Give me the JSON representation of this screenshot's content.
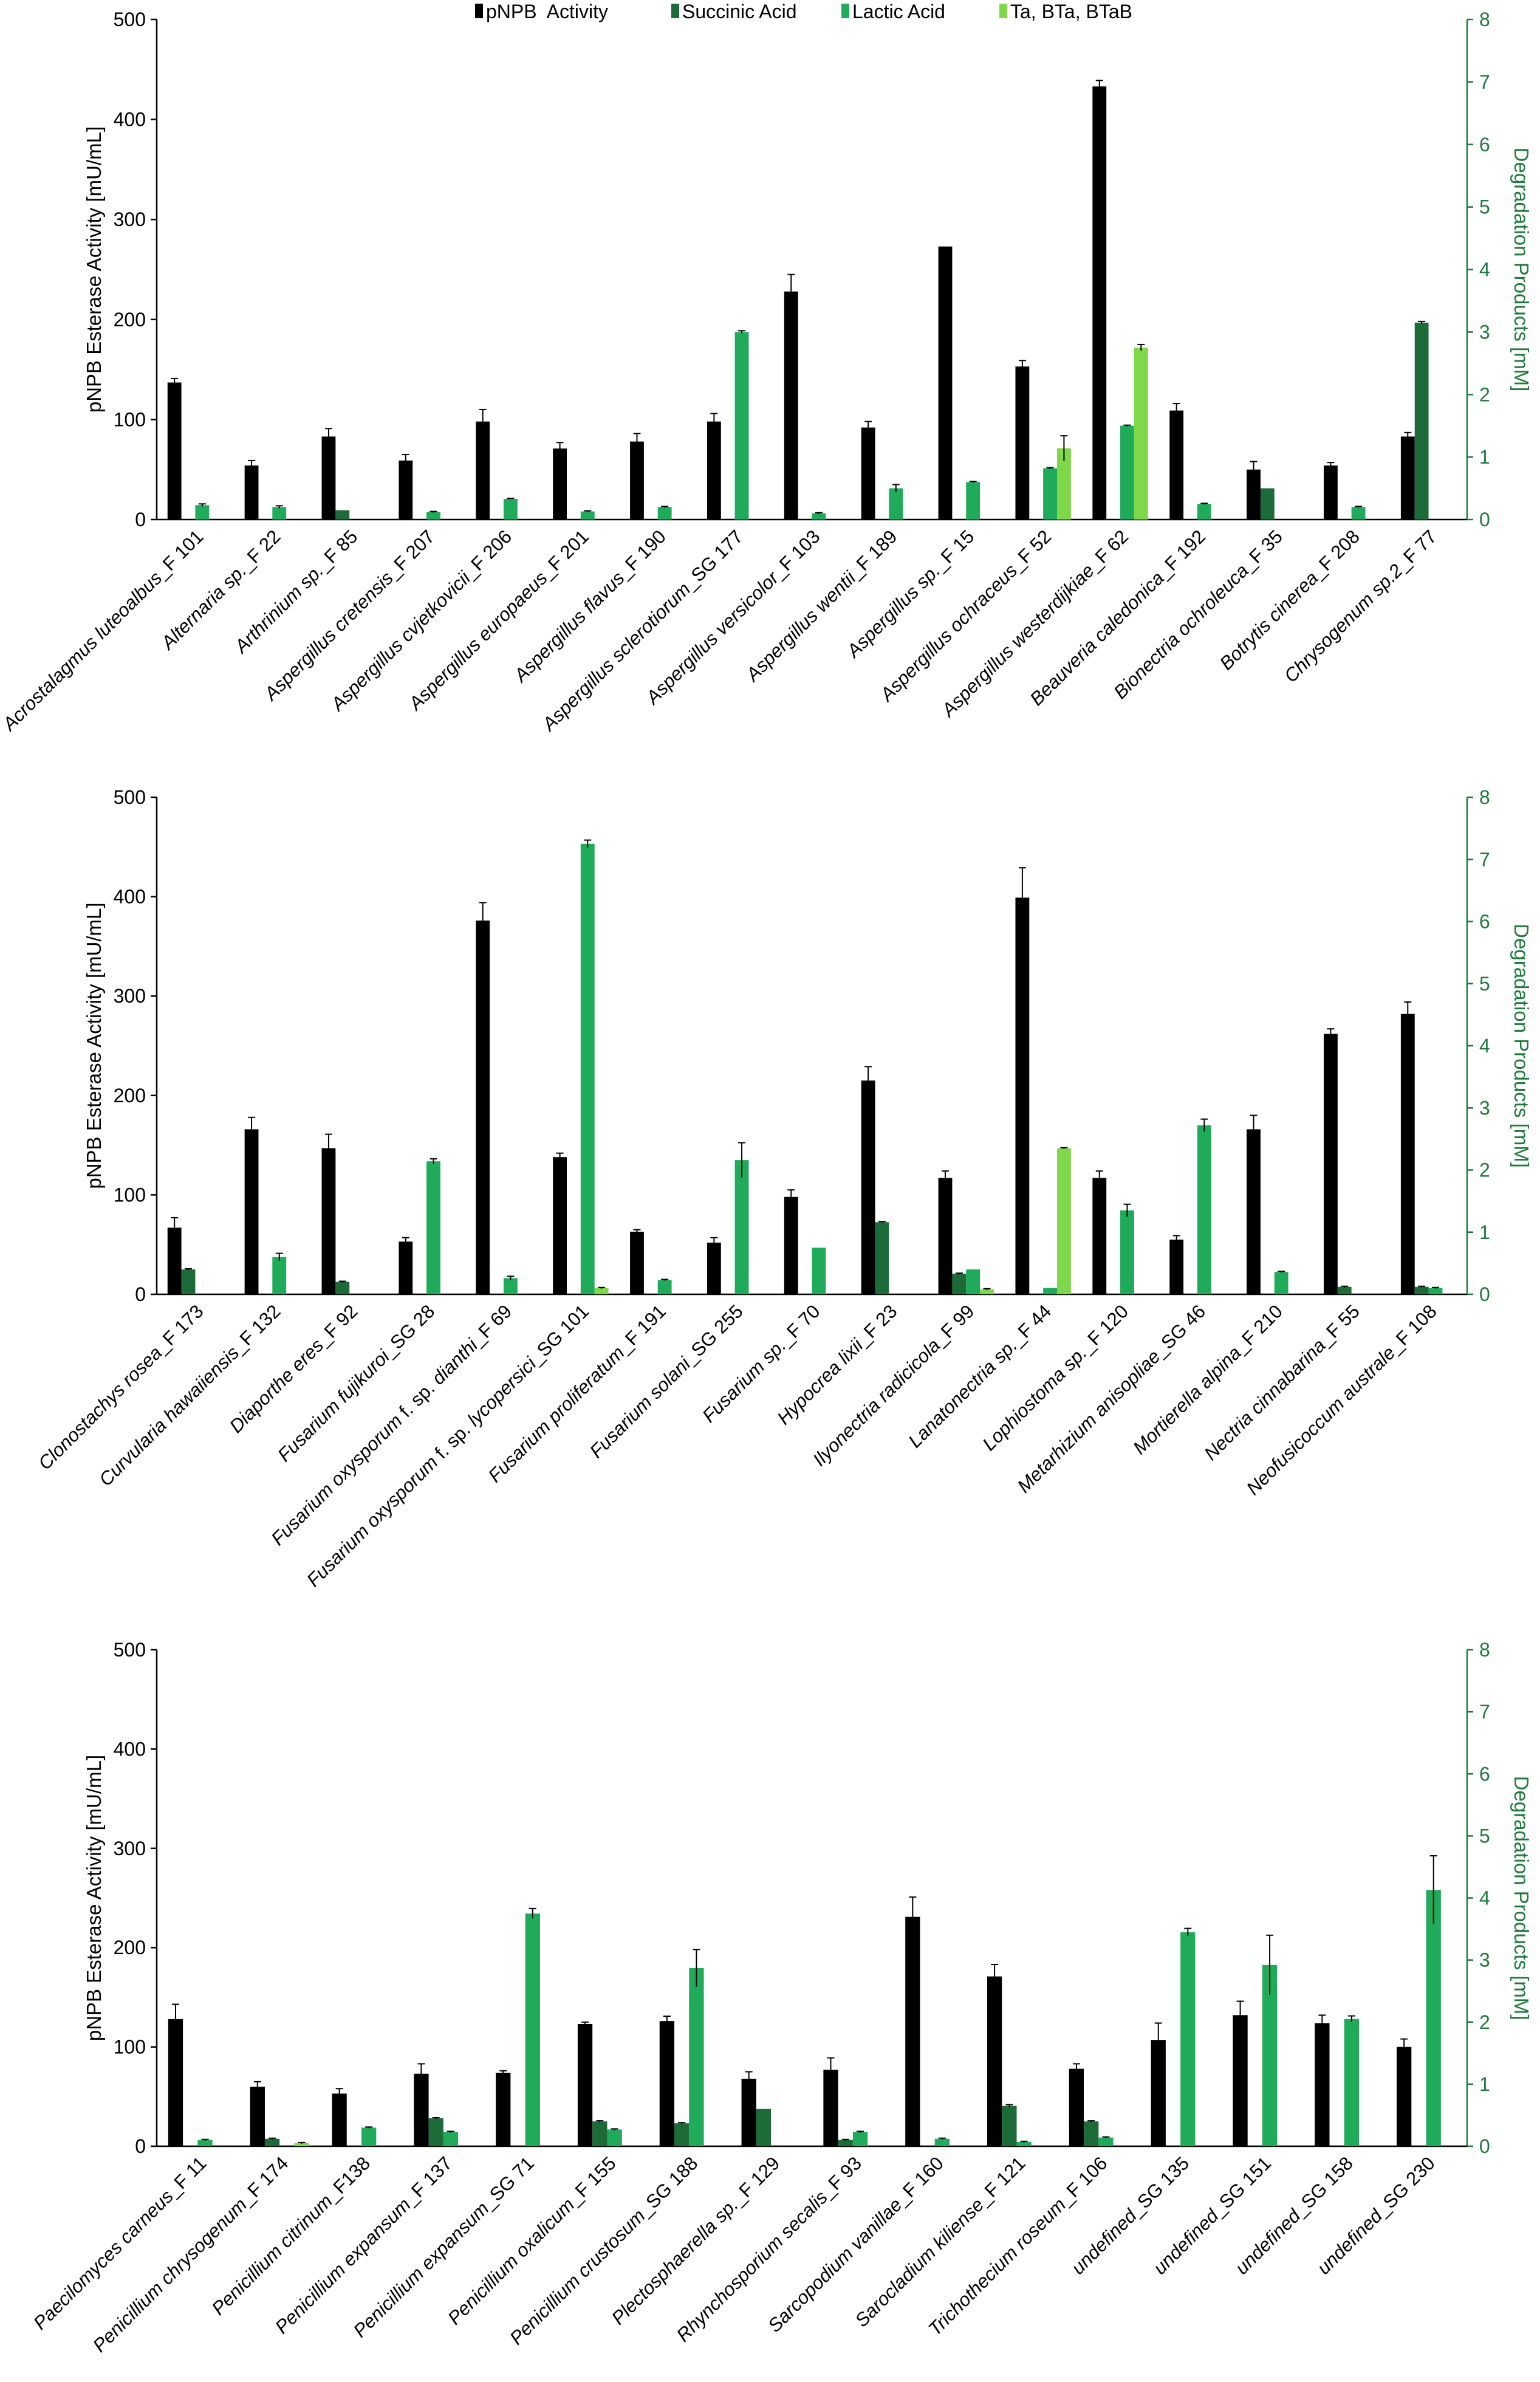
{
  "colors": {
    "pnpb": "#000000",
    "succinic": "#1e6b3a",
    "lactic": "#1fab5a",
    "ta": "#7fd84a",
    "right_axis": "#1e7a3c",
    "left_axis": "#000000"
  },
  "legend": {
    "items": [
      {
        "label": "pNPB  Activity",
        "color_key": "pnpb"
      },
      {
        "label": "Succinic Acid",
        "color_key": "succinic"
      },
      {
        "label": "Lactic Acid",
        "color_key": "lactic"
      },
      {
        "label": "Ta, BTa, BTaB",
        "color_key": "ta"
      }
    ]
  },
  "chart_data": [
    {
      "type": "bar",
      "ylabel": "pNPB Esterase Activity [mU/mL]",
      "y2label": "Degradation Products [mM]",
      "ylim": [
        0,
        500
      ],
      "y2lim": [
        0,
        8
      ],
      "yticks": [
        "0",
        "100",
        "200",
        "300",
        "400",
        "500"
      ],
      "y2ticks": [
        "0",
        "1",
        "2",
        "3",
        "4",
        "5",
        "6",
        "7",
        "8"
      ],
      "categories": [
        {
          "genus": "Acrostalagmus luteoalbus",
          "suffix": "_F 101"
        },
        {
          "genus": "Alternaria sp.",
          "suffix": "_F 22"
        },
        {
          "genus": "Arthrinium sp.",
          "suffix": "_F 85"
        },
        {
          "genus": "Aspergillus cretensis",
          "suffix": "_F 207"
        },
        {
          "genus": "Aspergillus cvjetkovicii",
          "suffix": "_F 206"
        },
        {
          "genus": "Aspergillus europaeus",
          "suffix": "_F 201"
        },
        {
          "genus": "Aspergillus flavus",
          "suffix": "_F 190"
        },
        {
          "genus": "Aspergillus sclerotiorum",
          "suffix": "_SG 177"
        },
        {
          "genus": "Aspergillus versicolor",
          "suffix": "_F 103"
        },
        {
          "genus": "Aspergillus wentii",
          "suffix": "_F 189"
        },
        {
          "genus": "Aspergillus sp.",
          "suffix": "_F 15"
        },
        {
          "genus": "Aspergillus ochraceus",
          "suffix": "_F 52"
        },
        {
          "genus": "Aspergillus westerdijkiae",
          "suffix": "_F 62"
        },
        {
          "genus": "Beauveria caledonica",
          "suffix": "_F 192"
        },
        {
          "genus": "Bionectria ochroleuca",
          "suffix": "_F 35"
        },
        {
          "genus": "Botrytis cinerea",
          "suffix": "_F 208"
        },
        {
          "genus": "Chrysogenum sp.2",
          "suffix": "_F 77"
        }
      ],
      "series": [
        {
          "name": "pNPB  Activity",
          "axis": "left",
          "color_key": "pnpb",
          "values": [
            137,
            54,
            83,
            59,
            98,
            71,
            78,
            98,
            228,
            92,
            273,
            153,
            433,
            109,
            50,
            54,
            83
          ],
          "errors": [
            4,
            5,
            8,
            6,
            12,
            6,
            8,
            8,
            17,
            6,
            0,
            6,
            6,
            7,
            8,
            3,
            4
          ]
        },
        {
          "name": "Succinic Acid",
          "axis": "right",
          "color_key": "succinic",
          "values": [
            0,
            0,
            0.15,
            0,
            0,
            0,
            0,
            0,
            0,
            0,
            0,
            0,
            0,
            0,
            0.5,
            0,
            3.15
          ],
          "errors": [
            0,
            0,
            0,
            0,
            0,
            0,
            0,
            0,
            0,
            0,
            0,
            0,
            0,
            0,
            0,
            0,
            0.02
          ]
        },
        {
          "name": "Lactic Acid",
          "axis": "right",
          "color_key": "lactic",
          "values": [
            0.23,
            0.2,
            0,
            0.12,
            0.33,
            0.13,
            0.2,
            3.0,
            0.1,
            0.5,
            0.6,
            0.82,
            1.5,
            0.25,
            0,
            0.2,
            0
          ],
          "errors": [
            0.02,
            0.02,
            0,
            0.01,
            0.01,
            0.01,
            0.01,
            0.02,
            0.01,
            0.06,
            0.01,
            0.01,
            0.01,
            0.01,
            0,
            0.01,
            0
          ]
        },
        {
          "name": "Ta, BTa, BTaB",
          "axis": "right",
          "color_key": "ta",
          "values": [
            0,
            0,
            0,
            0,
            0,
            0,
            0,
            0,
            0,
            0,
            0,
            1.14,
            2.75,
            0,
            0,
            0,
            0
          ],
          "errors": [
            0,
            0,
            0,
            0,
            0,
            0,
            0,
            0,
            0,
            0,
            0,
            0.2,
            0.05,
            0,
            0,
            0,
            0
          ]
        }
      ]
    },
    {
      "type": "bar",
      "ylabel": "pNPB Esterase Activity [mU/mL]",
      "y2label": "Degradation Products [mM]",
      "ylim": [
        0,
        500
      ],
      "y2lim": [
        0,
        8
      ],
      "yticks": [
        "0",
        "100",
        "200",
        "300",
        "400",
        "500"
      ],
      "y2ticks": [
        "0",
        "1",
        "2",
        "3",
        "4",
        "5",
        "6",
        "7",
        "8"
      ],
      "categories": [
        {
          "genus": "Clonostachys rosea",
          "suffix": "_F 173"
        },
        {
          "genus": "Curvularia hawaiiensis",
          "suffix": "_F 132"
        },
        {
          "genus": "Diaporthe eres",
          "suffix": "_F 92"
        },
        {
          "genus": "Fusarium fujikuroi",
          "suffix": "_SG 28"
        },
        {
          "genus": "Fusarium oxysporum",
          "mid": " f. sp. ",
          "genus2": "dianthi",
          "suffix": "_F 69"
        },
        {
          "genus": "Fusarium oxysporum",
          "mid": " f. sp. ",
          "genus2": "lycopersici",
          "suffix": "_SG 101"
        },
        {
          "genus": "Fusarium proliferatum",
          "suffix": "_F 191"
        },
        {
          "genus": "Fusarium solani",
          "suffix": "_SG 255"
        },
        {
          "genus": "Fusarium sp.",
          "suffix": "_F 70"
        },
        {
          "genus": "Hypocrea lixii",
          "suffix": "_F 23"
        },
        {
          "genus": "Ilyonectria radicicola",
          "suffix": "_F 99"
        },
        {
          "genus": "Lanatonectria sp.",
          "suffix": "_F 44"
        },
        {
          "genus": "Lophiostoma sp.",
          "suffix": "_F 120"
        },
        {
          "genus": "Metarhizium anisopliae",
          "suffix": "_SG 46"
        },
        {
          "genus": "Mortierella alpina",
          "suffix": "_F 210"
        },
        {
          "genus": "Nectria cinnabarina",
          "suffix": "_F 55"
        },
        {
          "genus": "Neofusicoccum australe",
          "suffix": "_F 108"
        }
      ],
      "series": [
        {
          "name": "pNPB  Activity",
          "axis": "left",
          "color_key": "pnpb",
          "values": [
            67,
            166,
            147,
            53,
            376,
            138,
            63,
            52,
            98,
            215,
            117,
            399,
            117,
            55,
            166,
            262,
            282
          ],
          "errors": [
            10,
            12,
            14,
            4,
            18,
            4,
            2,
            5,
            7,
            14,
            7,
            30,
            7,
            4,
            14,
            5,
            12
          ]
        },
        {
          "name": "Succinic Acid",
          "axis": "right",
          "color_key": "succinic",
          "values": [
            0.4,
            0,
            0.2,
            0,
            0,
            0,
            0,
            0,
            0,
            1.16,
            0.33,
            0,
            0,
            0,
            0,
            0.12,
            0.12
          ],
          "errors": [
            0.01,
            0,
            0.01,
            0,
            0,
            0,
            0,
            0,
            0,
            0.01,
            0.01,
            0,
            0,
            0,
            0,
            0.01,
            0.01
          ]
        },
        {
          "name": "Lactic Acid",
          "axis": "right",
          "color_key": "lactic",
          "values": [
            0,
            0.6,
            0,
            2.14,
            0.26,
            7.25,
            0.23,
            2.16,
            0.75,
            0,
            0.4,
            0.1,
            1.35,
            2.72,
            0.36,
            0,
            0.1
          ],
          "errors": [
            0,
            0.06,
            0,
            0.04,
            0.03,
            0.06,
            0.01,
            0.28,
            0,
            0,
            0,
            0,
            0.1,
            0.1,
            0.01,
            0,
            0.01
          ]
        },
        {
          "name": "Ta, BTa, BTaB",
          "axis": "right",
          "color_key": "ta",
          "values": [
            0,
            0,
            0,
            0,
            0,
            0.1,
            0,
            0,
            0,
            0,
            0.08,
            2.35,
            0,
            0,
            0,
            0,
            0
          ],
          "errors": [
            0,
            0,
            0,
            0,
            0,
            0.01,
            0,
            0,
            0,
            0,
            0.01,
            0.01,
            0,
            0,
            0,
            0,
            0
          ]
        }
      ]
    },
    {
      "type": "bar",
      "ylabel": "pNPB Esterase Activity [mU/mL]",
      "y2label": "Degradation Products [mM]",
      "ylim": [
        0,
        500
      ],
      "y2lim": [
        0,
        8
      ],
      "yticks": [
        "0",
        "100",
        "200",
        "300",
        "400",
        "500"
      ],
      "y2ticks": [
        "0",
        "1",
        "2",
        "3",
        "4",
        "5",
        "6",
        "7",
        "8"
      ],
      "categories": [
        {
          "genus": "Paecilomyces carneus",
          "suffix": "_F 11"
        },
        {
          "genus": "Penicillium chrysogenum",
          "suffix": "_F 174"
        },
        {
          "genus": "Penicillium citrinum",
          "suffix": "_F138"
        },
        {
          "genus": "Penicillium expansum",
          "suffix": "_F 137"
        },
        {
          "genus": "Penicillium expansum",
          "suffix": "_SG 71"
        },
        {
          "genus": "Penicillium oxalicum",
          "suffix": "_F 155"
        },
        {
          "genus": "Penicillium crustosum",
          "suffix": "_SG 188"
        },
        {
          "genus": "Plectosphaerella sp.",
          "suffix": "_F 129"
        },
        {
          "genus": "Rhynchosporium secalis",
          "suffix": "_F 93"
        },
        {
          "genus": "Sarcopodium vanillae",
          "suffix": "_F 160"
        },
        {
          "genus": "Sarocladium kiliense",
          "suffix": "_F 121"
        },
        {
          "genus": "Trichothecium roseum",
          "suffix": "_F 106"
        },
        {
          "genus": "undefined",
          "suffix": "_SG 135"
        },
        {
          "genus": "undefined",
          "suffix": "_SG 151"
        },
        {
          "genus": "undefined",
          "suffix": "_SG 158"
        },
        {
          "genus": "undefined",
          "suffix": "_SG 230"
        }
      ],
      "series": [
        {
          "name": "pNPB  Activity",
          "axis": "left",
          "color_key": "pnpb",
          "values": [
            128,
            60,
            53,
            73,
            74,
            123,
            126,
            68,
            77,
            231,
            171,
            78,
            107,
            132,
            124,
            100
          ],
          "errors": [
            15,
            5,
            5,
            10,
            2,
            2,
            5,
            7,
            12,
            20,
            12,
            5,
            17,
            14,
            8,
            8
          ]
        },
        {
          "name": "Succinic Acid",
          "axis": "right",
          "color_key": "succinic",
          "values": [
            0,
            0.12,
            0,
            0.45,
            0,
            0.4,
            0.37,
            0.6,
            0.1,
            0,
            0.65,
            0.4,
            0,
            0,
            0,
            0
          ],
          "errors": [
            0,
            0.01,
            0,
            0.01,
            0,
            0.01,
            0.01,
            0,
            0.01,
            0,
            0.02,
            0.01,
            0,
            0,
            0,
            0
          ]
        },
        {
          "name": "Lactic Acid",
          "axis": "right",
          "color_key": "lactic",
          "values": [
            0.1,
            0,
            0.3,
            0.23,
            3.75,
            0.27,
            2.87,
            0,
            0.23,
            0.12,
            0.07,
            0.14,
            3.45,
            2.92,
            2.05,
            4.13
          ],
          "errors": [
            0.01,
            0,
            0.01,
            0.01,
            0.08,
            0.01,
            0.3,
            0,
            0.01,
            0.01,
            0.01,
            0.01,
            0.06,
            0.48,
            0.05,
            0.55
          ]
        },
        {
          "name": "Ta, BTa, BTaB",
          "axis": "right",
          "color_key": "ta",
          "values": [
            0,
            0.05,
            0,
            0,
            0,
            0,
            0,
            0,
            0,
            0,
            0,
            0,
            0,
            0,
            0,
            0
          ],
          "errors": [
            0,
            0.01,
            0,
            0,
            0,
            0,
            0,
            0,
            0,
            0,
            0,
            0,
            0,
            0,
            0,
            0
          ]
        }
      ]
    }
  ]
}
